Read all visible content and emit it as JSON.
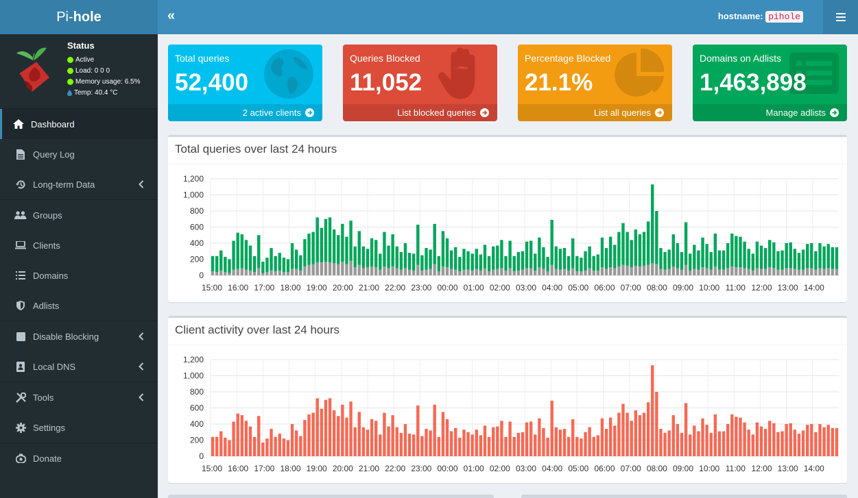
{
  "header": {
    "logo_light": "Pi-",
    "logo_bold": "hole",
    "toggle_label": "«",
    "hostname_label": "hostname:",
    "hostname_value": "pihole"
  },
  "status": {
    "title": "Status",
    "active": "Active",
    "load": "Load:  0  0  0",
    "memory": "Memory usage:  6.5%",
    "temp": "Temp: 40.4 °C"
  },
  "sidebar": {
    "items": [
      {
        "label": "Dashboard"
      },
      {
        "label": "Query Log"
      },
      {
        "label": "Long-term Data"
      },
      {
        "label": "Groups"
      },
      {
        "label": "Clients"
      },
      {
        "label": "Domains"
      },
      {
        "label": "Adlists"
      },
      {
        "label": "Disable Blocking"
      },
      {
        "label": "Local DNS"
      },
      {
        "label": "Tools"
      },
      {
        "label": "Settings"
      },
      {
        "label": "Donate"
      }
    ]
  },
  "stats": [
    {
      "title": "Total queries",
      "value": "52,400",
      "footer": "2 active clients",
      "color": "#00c0ef",
      "icon": "globe-icon"
    },
    {
      "title": "Queries Blocked",
      "value": "11,052",
      "footer": "List blocked queries",
      "color": "#dd4b39",
      "icon": "hand-icon"
    },
    {
      "title": "Percentage Blocked",
      "value": "21.1%",
      "footer": "List all queries",
      "color": "#f39c12",
      "icon": "pie-chart-icon"
    },
    {
      "title": "Domains on Adlists",
      "value": "1,463,898",
      "footer": "Manage adlists",
      "color": "#00a65a",
      "icon": "list-alt-icon"
    }
  ],
  "charts": {
    "queries_title": "Total queries over last 24 hours",
    "clients_title": "Client activity over last 24 hours"
  },
  "chart_data": [
    {
      "type": "bar",
      "title": "Total queries over last 24 hours",
      "stacked": true,
      "ylim": [
        0,
        1200
      ],
      "yticks": [
        "0",
        "200",
        "400",
        "600",
        "800",
        "1,000",
        "1,200"
      ],
      "xticks": [
        "15:00",
        "16:00",
        "17:00",
        "18:00",
        "19:00",
        "20:00",
        "21:00",
        "22:00",
        "23:00",
        "00:00",
        "01:00",
        "02:00",
        "03:00",
        "04:00",
        "05:00",
        "06:00",
        "07:00",
        "08:00",
        "09:00",
        "10:00",
        "11:00",
        "12:00",
        "13:00",
        "14:00"
      ],
      "grid": true,
      "series": [
        {
          "color": "#00a65a",
          "values": [
            240,
            240,
            310,
            230,
            200,
            430,
            530,
            510,
            440,
            370,
            240,
            500,
            170,
            220,
            340,
            240,
            280,
            220,
            200,
            400,
            320,
            250,
            450,
            520,
            540,
            720,
            590,
            700,
            720,
            570,
            500,
            640,
            480,
            680,
            360,
            550,
            360,
            330,
            460,
            440,
            270,
            540,
            370,
            510,
            360,
            290,
            400,
            280,
            270,
            630,
            250,
            340,
            320,
            640,
            240,
            550,
            460,
            310,
            350,
            230,
            330,
            300,
            270,
            330,
            260,
            380,
            240,
            360,
            370,
            440,
            240,
            430,
            240,
            290,
            300,
            420,
            430,
            270,
            470,
            350,
            230,
            690,
            360,
            330,
            340,
            240,
            460,
            240,
            220,
            300,
            360,
            240,
            260,
            470,
            340,
            480,
            380,
            540,
            650,
            540,
            440,
            570,
            510,
            540,
            670,
            1130,
            800,
            340,
            290,
            320,
            510,
            400,
            290,
            660,
            270,
            380,
            310,
            470,
            390,
            290,
            520,
            310,
            310,
            400,
            520,
            490,
            480,
            420,
            330,
            270,
            420,
            370,
            340,
            440,
            410,
            300,
            310,
            400,
            410,
            330,
            280,
            320,
            390,
            400,
            300,
            400,
            360,
            390,
            350,
            350
          ]
        },
        {
          "color": "#999999",
          "values": [
            50,
            40,
            60,
            40,
            30,
            70,
            80,
            90,
            70,
            60,
            40,
            90,
            30,
            40,
            60,
            50,
            60,
            40,
            40,
            80,
            80,
            60,
            110,
            130,
            140,
            160,
            160,
            170,
            160,
            150,
            140,
            170,
            140,
            180,
            100,
            130,
            90,
            100,
            110,
            100,
            70,
            110,
            90,
            110,
            90,
            70,
            90,
            70,
            60,
            130,
            60,
            70,
            80,
            140,
            50,
            110,
            100,
            80,
            70,
            50,
            70,
            70,
            60,
            80,
            60,
            90,
            50,
            70,
            80,
            90,
            60,
            90,
            50,
            60,
            70,
            90,
            90,
            60,
            100,
            80,
            50,
            130,
            80,
            70,
            80,
            60,
            90,
            50,
            50,
            60,
            90,
            60,
            60,
            100,
            80,
            100,
            90,
            110,
            130,
            120,
            100,
            120,
            110,
            120,
            130,
            150,
            140,
            80,
            70,
            80,
            110,
            90,
            70,
            130,
            60,
            80,
            70,
            100,
            90,
            70,
            110,
            70,
            70,
            90,
            110,
            100,
            100,
            90,
            80,
            60,
            90,
            80,
            80,
            100,
            90,
            70,
            70,
            90,
            90,
            80,
            70,
            70,
            90,
            90,
            70,
            90,
            80,
            90,
            80,
            80
          ]
        }
      ]
    },
    {
      "type": "bar",
      "title": "Client activity over last 24 hours",
      "ylim": [
        0,
        1200
      ],
      "yticks": [
        "0",
        "200",
        "400",
        "600",
        "800",
        "1,000",
        "1,200"
      ],
      "xticks": [
        "15:00",
        "16:00",
        "17:00",
        "18:00",
        "19:00",
        "20:00",
        "21:00",
        "22:00",
        "23:00",
        "00:00",
        "01:00",
        "02:00",
        "03:00",
        "04:00",
        "05:00",
        "06:00",
        "07:00",
        "08:00",
        "09:00",
        "10:00",
        "11:00",
        "12:00",
        "13:00",
        "14:00"
      ],
      "grid": true,
      "series": [
        {
          "color": "#f56954",
          "values": [
            240,
            240,
            310,
            230,
            200,
            430,
            530,
            510,
            440,
            370,
            240,
            500,
            170,
            220,
            340,
            240,
            280,
            220,
            200,
            400,
            320,
            250,
            450,
            520,
            540,
            720,
            590,
            700,
            720,
            570,
            500,
            640,
            480,
            680,
            360,
            550,
            360,
            330,
            460,
            440,
            270,
            540,
            370,
            510,
            360,
            290,
            400,
            280,
            270,
            630,
            250,
            340,
            320,
            640,
            240,
            550,
            460,
            310,
            350,
            230,
            330,
            300,
            270,
            330,
            260,
            380,
            240,
            360,
            370,
            440,
            240,
            430,
            240,
            290,
            300,
            420,
            430,
            270,
            470,
            350,
            230,
            690,
            360,
            330,
            340,
            240,
            460,
            240,
            220,
            300,
            360,
            240,
            260,
            470,
            340,
            480,
            380,
            540,
            650,
            540,
            440,
            570,
            510,
            540,
            670,
            1130,
            800,
            340,
            290,
            320,
            510,
            400,
            290,
            660,
            270,
            380,
            310,
            470,
            390,
            290,
            520,
            310,
            310,
            400,
            520,
            490,
            480,
            420,
            330,
            270,
            420,
            370,
            340,
            440,
            410,
            300,
            310,
            400,
            410,
            330,
            280,
            320,
            390,
            400,
            300,
            400,
            360,
            390,
            350,
            350
          ]
        }
      ]
    }
  ]
}
